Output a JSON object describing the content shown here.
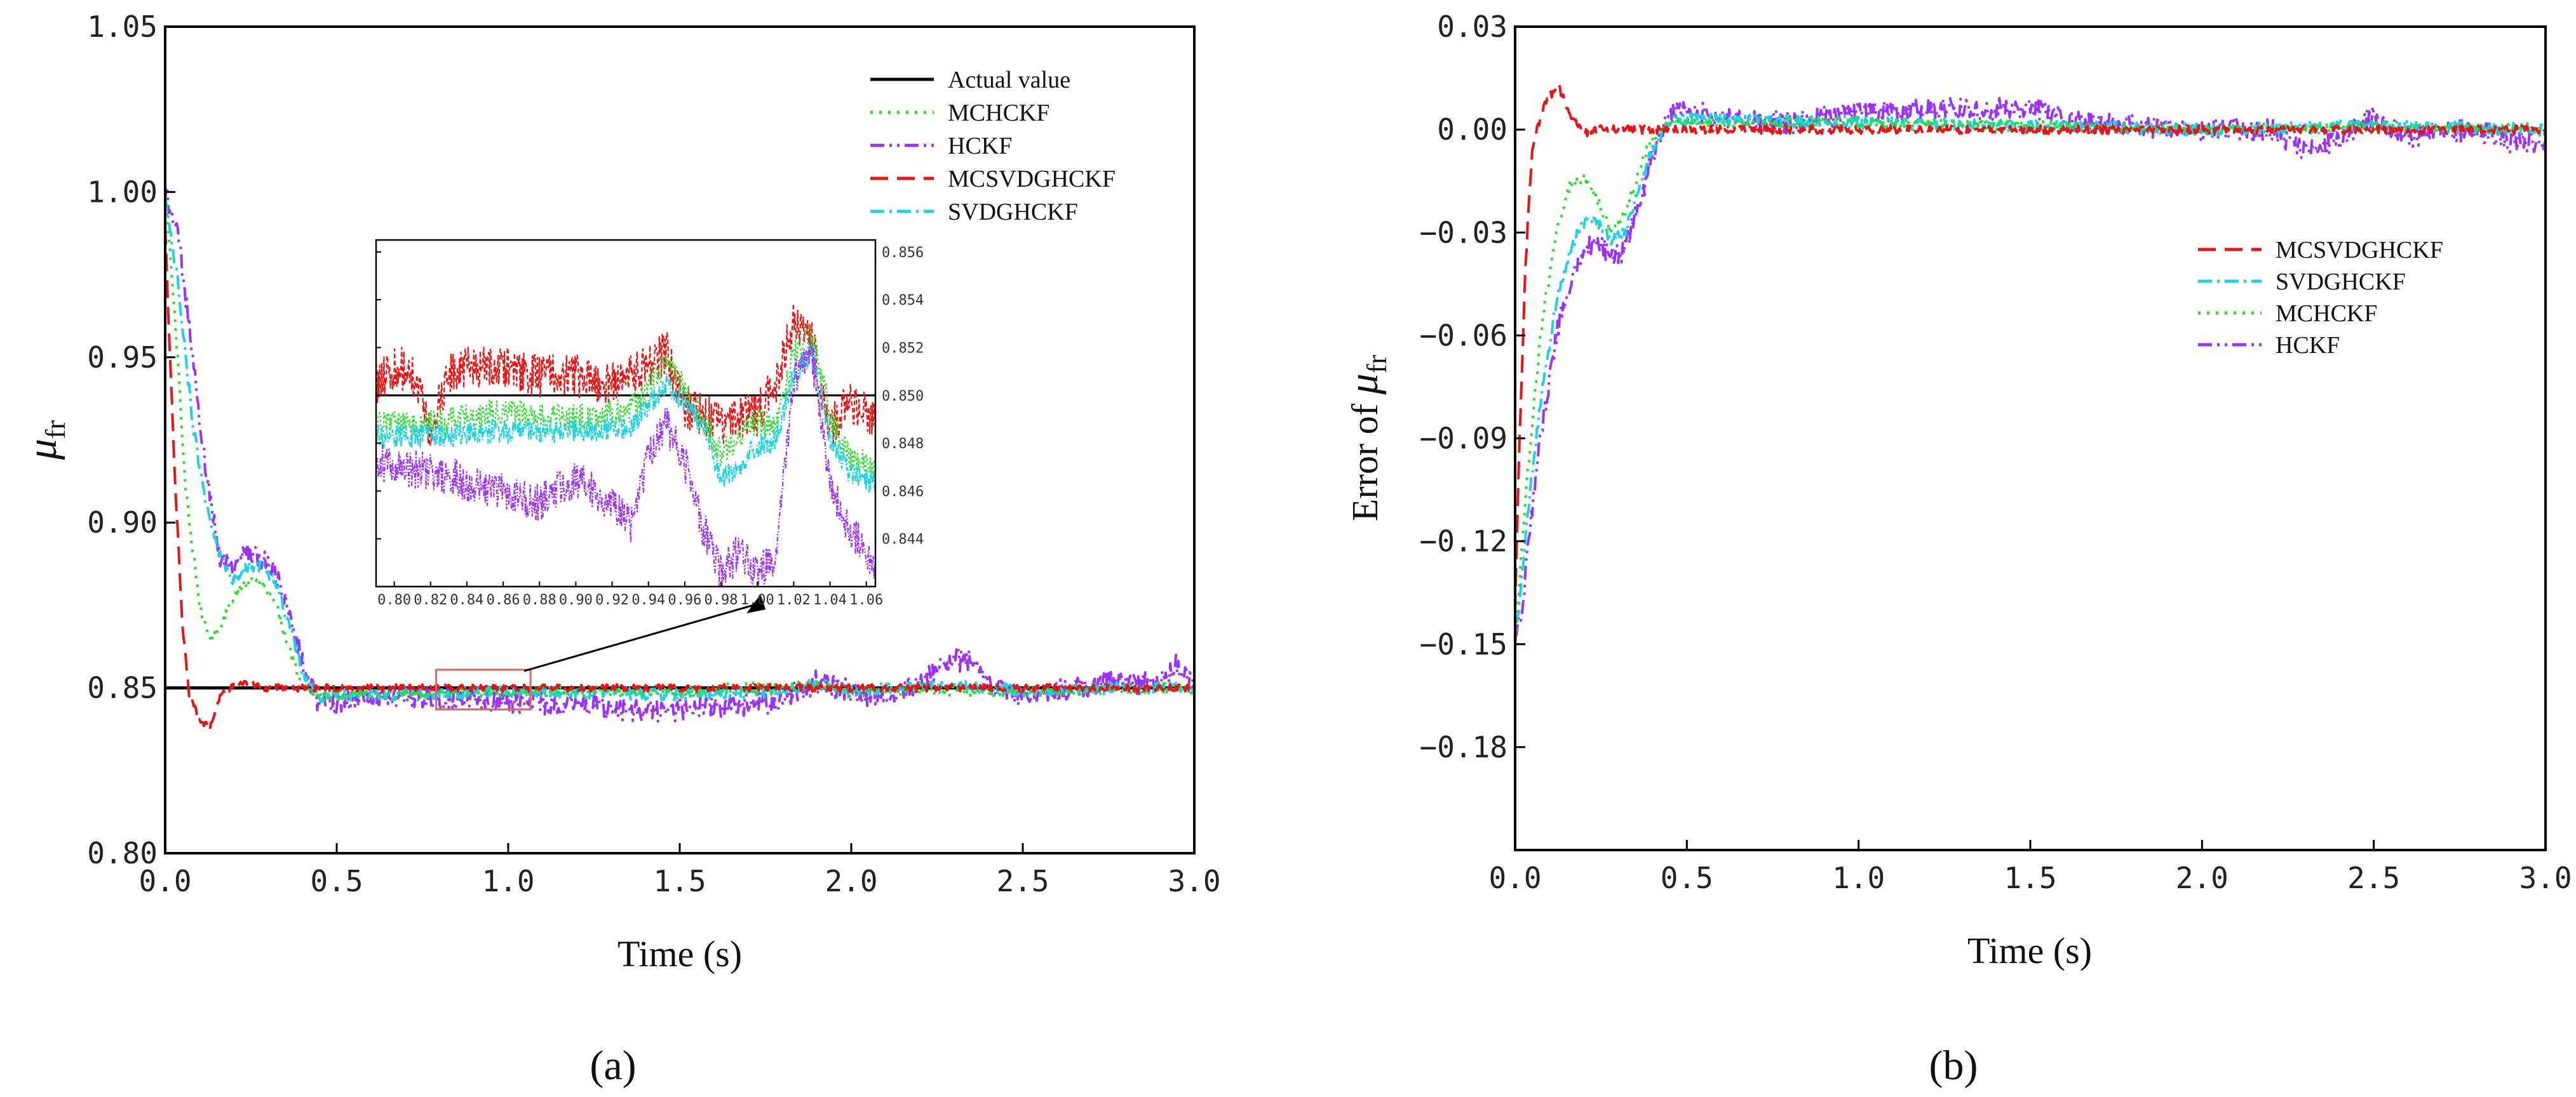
{
  "chart_data": [
    {
      "id": "a",
      "type": "line",
      "panel_label": "(a)",
      "xlabel": "Time (s)",
      "ylabel": "μfr",
      "ylabel_main": "μ",
      "ylabel_sub": "fr",
      "xlim": [
        0.0,
        3.0
      ],
      "ylim": [
        0.8,
        1.05
      ],
      "x_ticks": [
        {
          "v": 0.0,
          "label": "0.0"
        },
        {
          "v": 0.5,
          "label": "0.5"
        },
        {
          "v": 1.0,
          "label": "1.0"
        },
        {
          "v": 1.5,
          "label": "1.5"
        },
        {
          "v": 2.0,
          "label": "2.0"
        },
        {
          "v": 2.5,
          "label": "2.5"
        },
        {
          "v": 3.0,
          "label": "3.0"
        }
      ],
      "y_ticks": [
        {
          "v": 0.8,
          "label": "0.80"
        },
        {
          "v": 0.85,
          "label": "0.85"
        },
        {
          "v": 0.9,
          "label": "0.90"
        },
        {
          "v": 0.95,
          "label": "0.95"
        },
        {
          "v": 1.0,
          "label": "1.00"
        },
        {
          "v": 1.05,
          "label": "1.05"
        }
      ],
      "legend": [
        {
          "key": "actual",
          "label": "Actual value"
        },
        {
          "key": "mchckf",
          "label": "MCHCKF"
        },
        {
          "key": "hckf",
          "label": "HCKF"
        },
        {
          "key": "mcsvd",
          "label": "MCSVDGHCKF"
        },
        {
          "key": "svd",
          "label": "SVDGHCKF"
        }
      ],
      "series": [
        {
          "key": "actual",
          "name": "Actual value",
          "color": "#000000",
          "dash": "",
          "x": [
            0.0,
            3.0
          ],
          "values": [
            0.85,
            0.85
          ],
          "noise": 0
        },
        {
          "key": "hckf",
          "name": "HCKF",
          "color": "#9b30ff",
          "dash": "22,8,4,8,4,8",
          "x": [
            0.0,
            0.04,
            0.08,
            0.12,
            0.16,
            0.2,
            0.24,
            0.28,
            0.32,
            0.36,
            0.4,
            0.45,
            0.5,
            0.6,
            0.8,
            1.0,
            1.2,
            1.4,
            1.6,
            1.8,
            1.9,
            2.0,
            2.1,
            2.2,
            2.3,
            2.35,
            2.4,
            2.5,
            2.6,
            2.8,
            2.9,
            2.95,
            3.0
          ],
          "values": [
            1.0,
            0.985,
            0.95,
            0.915,
            0.89,
            0.885,
            0.891,
            0.889,
            0.885,
            0.872,
            0.858,
            0.845,
            0.845,
            0.847,
            0.847,
            0.846,
            0.845,
            0.843,
            0.844,
            0.846,
            0.852,
            0.849,
            0.847,
            0.852,
            0.858,
            0.859,
            0.85,
            0.847,
            0.849,
            0.852,
            0.851,
            0.857,
            0.85
          ],
          "noise": 0.0035
        },
        {
          "key": "svd",
          "name": "SVDGHCKF",
          "color": "#19d3e6",
          "dash": "22,8,4,8",
          "x": [
            0.0,
            0.04,
            0.08,
            0.12,
            0.16,
            0.2,
            0.24,
            0.28,
            0.32,
            0.36,
            0.4,
            0.45,
            0.5,
            0.8,
            1.0,
            1.5,
            1.8,
            1.9,
            2.0,
            2.3,
            2.5,
            2.8,
            3.0
          ],
          "values": [
            1.0,
            0.97,
            0.93,
            0.905,
            0.89,
            0.882,
            0.887,
            0.887,
            0.882,
            0.87,
            0.855,
            0.847,
            0.848,
            0.848,
            0.849,
            0.848,
            0.849,
            0.851,
            0.849,
            0.851,
            0.849,
            0.85,
            0.85
          ],
          "noise": 0.0018
        },
        {
          "key": "mchckf",
          "name": "MCHCKF",
          "color": "#22e022",
          "dash": "4,10",
          "x": [
            0.0,
            0.03,
            0.06,
            0.1,
            0.13,
            0.16,
            0.2,
            0.24,
            0.28,
            0.32,
            0.36,
            0.4,
            0.45,
            0.5,
            0.8,
            1.0,
            1.5,
            1.9,
            2.0,
            2.5,
            3.0
          ],
          "values": [
            1.0,
            0.96,
            0.91,
            0.875,
            0.865,
            0.868,
            0.878,
            0.882,
            0.882,
            0.876,
            0.862,
            0.851,
            0.847,
            0.848,
            0.849,
            0.849,
            0.849,
            0.851,
            0.849,
            0.849,
            0.85
          ],
          "noise": 0.0016
        },
        {
          "key": "mcsvd",
          "name": "MCSVDGHCKF",
          "color": "#ee1111",
          "dash": "28,14",
          "x": [
            0.0,
            0.01,
            0.03,
            0.05,
            0.07,
            0.1,
            0.13,
            0.16,
            0.2,
            0.25,
            0.3,
            0.5,
            1.0,
            1.5,
            2.0,
            2.5,
            3.0
          ],
          "values": [
            0.99,
            0.96,
            0.91,
            0.87,
            0.848,
            0.84,
            0.838,
            0.848,
            0.851,
            0.851,
            0.85,
            0.85,
            0.85,
            0.85,
            0.85,
            0.85,
            0.85
          ],
          "noise": 0.0011
        }
      ],
      "inset": {
        "xlim": [
          0.79,
          1.065
        ],
        "ylim": [
          0.842,
          0.8565
        ],
        "x_ticks": [
          {
            "v": 0.8,
            "label": "0.80"
          },
          {
            "v": 0.82,
            "label": "0.82"
          },
          {
            "v": 0.84,
            "label": "0.84"
          },
          {
            "v": 0.86,
            "label": "0.86"
          },
          {
            "v": 0.88,
            "label": "0.88"
          },
          {
            "v": 0.9,
            "label": "0.90"
          },
          {
            "v": 0.92,
            "label": "0.92"
          },
          {
            "v": 0.94,
            "label": "0.94"
          },
          {
            "v": 0.96,
            "label": "0.96"
          },
          {
            "v": 0.98,
            "label": "0.98"
          },
          {
            "v": 1.0,
            "label": "1.00"
          },
          {
            "v": 1.02,
            "label": "1.02"
          },
          {
            "v": 1.04,
            "label": "1.04"
          },
          {
            "v": 1.06,
            "label": "1.06"
          }
        ],
        "y_ticks": [
          {
            "v": 0.844,
            "label": "0.844"
          },
          {
            "v": 0.846,
            "label": "0.846"
          },
          {
            "v": 0.848,
            "label": "0.848"
          },
          {
            "v": 0.85,
            "label": "0.850"
          },
          {
            "v": 0.852,
            "label": "0.852"
          },
          {
            "v": 0.854,
            "label": "0.854"
          },
          {
            "v": 0.856,
            "label": "0.856"
          }
        ],
        "zoom_box": {
          "x": [
            0.79,
            1.065
          ],
          "y": [
            0.8435,
            0.8555
          ]
        },
        "series": [
          {
            "key": "actual",
            "color": "#000000",
            "dash": "",
            "x": [
              0.79,
              1.065
            ],
            "values": [
              0.85,
              0.85
            ],
            "noise": 0
          },
          {
            "key": "mcsvd",
            "color": "#ee1111",
            "dash": "7,4",
            "x": [
              0.79,
              0.8,
              0.81,
              0.82,
              0.83,
              0.84,
              0.86,
              0.88,
              0.9,
              0.92,
              0.94,
              0.95,
              0.96,
              0.98,
              1.0,
              1.01,
              1.02,
              1.03,
              1.04,
              1.05,
              1.065
            ],
            "values": [
              0.8505,
              0.8512,
              0.851,
              0.8485,
              0.851,
              0.8512,
              0.8512,
              0.8508,
              0.8508,
              0.8505,
              0.8512,
              0.8518,
              0.8495,
              0.8488,
              0.8492,
              0.8505,
              0.8532,
              0.8525,
              0.8485,
              0.8498,
              0.849
            ],
            "noise": 0.0009
          },
          {
            "key": "mchckf",
            "color": "#22e022",
            "dash": "3,4",
            "x": [
              0.79,
              0.82,
              0.86,
              0.9,
              0.93,
              0.95,
              0.97,
              0.98,
              1.0,
              1.01,
              1.02,
              1.03,
              1.04,
              1.05,
              1.065
            ],
            "values": [
              0.8487,
              0.8488,
              0.8493,
              0.849,
              0.8493,
              0.8515,
              0.849,
              0.8475,
              0.849,
              0.8485,
              0.8518,
              0.8525,
              0.8492,
              0.8475,
              0.8468
            ],
            "noise": 0.0006
          },
          {
            "key": "svd",
            "color": "#19d3e6",
            "dash": "9,3,2,3",
            "x": [
              0.79,
              0.82,
              0.86,
              0.9,
              0.93,
              0.95,
              0.97,
              0.98,
              1.0,
              1.01,
              1.02,
              1.03,
              1.04,
              1.05,
              1.065
            ],
            "values": [
              0.8483,
              0.8483,
              0.8485,
              0.8485,
              0.8487,
              0.8505,
              0.8488,
              0.8465,
              0.8478,
              0.8482,
              0.8508,
              0.8518,
              0.8482,
              0.8468,
              0.8463
            ],
            "noise": 0.0005
          },
          {
            "key": "hckf",
            "color": "#9b30ff",
            "dash": "7,3,2,3,2,3",
            "x": [
              0.79,
              0.82,
              0.85,
              0.88,
              0.9,
              0.92,
              0.93,
              0.94,
              0.95,
              0.96,
              0.97,
              0.98,
              0.99,
              1.0,
              1.01,
              1.02,
              1.03,
              1.04,
              1.05,
              1.065
            ],
            "values": [
              0.8472,
              0.8468,
              0.8462,
              0.8455,
              0.8465,
              0.8455,
              0.8445,
              0.8475,
              0.8488,
              0.8472,
              0.8445,
              0.8425,
              0.8435,
              0.8425,
              0.8432,
              0.8508,
              0.8518,
              0.8462,
              0.8445,
              0.843
            ],
            "noise": 0.0008
          }
        ]
      }
    },
    {
      "id": "b",
      "type": "line",
      "panel_label": "(b)",
      "xlabel": "Time (s)",
      "ylabel": "Error of μfr",
      "ylabel_prefix": "Error of ",
      "ylabel_main": "μ",
      "ylabel_sub": "fr",
      "xlim": [
        0.0,
        3.0
      ],
      "ylim": [
        -0.21,
        0.03
      ],
      "x_ticks": [
        {
          "v": 0.0,
          "label": "0.0"
        },
        {
          "v": 0.5,
          "label": "0.5"
        },
        {
          "v": 1.0,
          "label": "1.0"
        },
        {
          "v": 1.5,
          "label": "1.5"
        },
        {
          "v": 2.0,
          "label": "2.0"
        },
        {
          "v": 2.5,
          "label": "2.5"
        },
        {
          "v": 3.0,
          "label": "3.0"
        }
      ],
      "y_ticks": [
        {
          "v": 0.03,
          "label": "0.03"
        },
        {
          "v": 0.0,
          "label": "0.00"
        },
        {
          "v": -0.03,
          "label": "−0.03"
        },
        {
          "v": -0.06,
          "label": "−0.06"
        },
        {
          "v": -0.09,
          "label": "−0.09"
        },
        {
          "v": -0.12,
          "label": "−0.12"
        },
        {
          "v": -0.15,
          "label": "−0.15"
        },
        {
          "v": -0.18,
          "label": "−0.18"
        }
      ],
      "legend": [
        {
          "key": "mcsvd",
          "label": "MCSVDGHCKF"
        },
        {
          "key": "svd",
          "label": "SVDGHCKF"
        },
        {
          "key": "mchckf",
          "label": "MCHCKF"
        },
        {
          "key": "hckf",
          "label": "HCKF"
        }
      ],
      "series": [
        {
          "key": "hckf",
          "name": "HCKF",
          "color": "#9b30ff",
          "dash": "22,8,4,8,4,8",
          "x": [
            0.0,
            0.02,
            0.05,
            0.08,
            0.12,
            0.16,
            0.2,
            0.24,
            0.28,
            0.32,
            0.36,
            0.4,
            0.45,
            0.5,
            0.6,
            0.8,
            1.0,
            1.2,
            1.4,
            1.5,
            1.6,
            1.8,
            2.0,
            2.2,
            2.3,
            2.4,
            2.5,
            2.6,
            2.8,
            2.9,
            3.0
          ],
          "values": [
            -0.15,
            -0.14,
            -0.11,
            -0.085,
            -0.06,
            -0.045,
            -0.035,
            -0.033,
            -0.037,
            -0.035,
            -0.022,
            -0.008,
            0.004,
            0.006,
            0.003,
            0.002,
            0.005,
            0.006,
            0.006,
            0.007,
            0.003,
            0.001,
            0.0,
            0.0,
            -0.007,
            -0.003,
            0.004,
            -0.002,
            0.0,
            -0.004,
            -0.003
          ],
          "noise": 0.0032
        },
        {
          "key": "svd",
          "name": "SVDGHCKF",
          "color": "#19d3e6",
          "dash": "22,8,4,8",
          "x": [
            0.0,
            0.02,
            0.05,
            0.08,
            0.12,
            0.16,
            0.2,
            0.24,
            0.28,
            0.32,
            0.36,
            0.4,
            0.45,
            0.5,
            1.0,
            1.5,
            2.0,
            2.5,
            3.0
          ],
          "values": [
            -0.15,
            -0.13,
            -0.1,
            -0.075,
            -0.05,
            -0.035,
            -0.027,
            -0.027,
            -0.032,
            -0.03,
            -0.018,
            -0.005,
            0.002,
            0.003,
            0.002,
            0.001,
            0.0,
            0.001,
            0.0
          ],
          "noise": 0.0018
        },
        {
          "key": "mchckf",
          "name": "MCHCKF",
          "color": "#22e022",
          "dash": "4,10",
          "x": [
            0.0,
            0.02,
            0.05,
            0.08,
            0.12,
            0.16,
            0.2,
            0.24,
            0.28,
            0.32,
            0.36,
            0.4,
            0.45,
            0.5,
            1.0,
            1.5,
            2.0,
            2.5,
            3.0
          ],
          "values": [
            -0.15,
            -0.12,
            -0.085,
            -0.055,
            -0.03,
            -0.016,
            -0.014,
            -0.02,
            -0.03,
            -0.025,
            -0.012,
            -0.002,
            0.002,
            0.002,
            0.002,
            0.001,
            0.0,
            0.001,
            0.0
          ],
          "noise": 0.0016
        },
        {
          "key": "mcsvd",
          "name": "MCSVDGHCKF",
          "color": "#ee1111",
          "dash": "28,14",
          "x": [
            0.0,
            0.01,
            0.03,
            0.05,
            0.08,
            0.11,
            0.13,
            0.16,
            0.2,
            0.25,
            0.3,
            0.5,
            1.0,
            1.5,
            2.0,
            2.5,
            3.0
          ],
          "values": [
            -0.14,
            -0.1,
            -0.04,
            -0.005,
            0.006,
            0.011,
            0.012,
            0.004,
            -0.001,
            0.0,
            0.0,
            0.0,
            0.0,
            0.0,
            0.0,
            0.0,
            0.0
          ],
          "noise": 0.0012
        }
      ]
    }
  ]
}
